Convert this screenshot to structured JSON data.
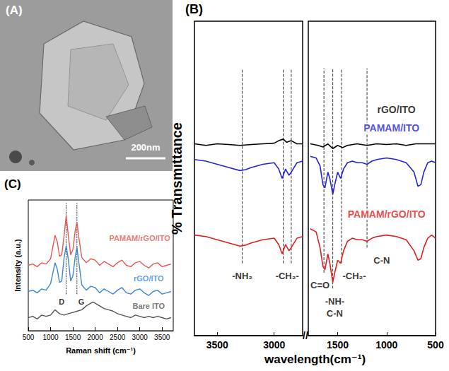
{
  "image_panel": {
    "title": "(A)",
    "scale_bar": "200nm"
  },
  "chart_data": [
    {
      "type": "line",
      "title": "(B)",
      "xlabel": "wavelength(cm⁻¹)",
      "ylabel": "% Transmittance",
      "ylim": [
        0,
        100
      ],
      "tick_labels": "x",
      "grid": false,
      "axis_break": "//",
      "segments": [
        {
          "xlim": [
            3700,
            2750
          ],
          "xticks": [
            3500,
            3000
          ]
        },
        {
          "xlim": [
            1800,
            500
          ],
          "xticks": [
            1500,
            1000,
            500
          ]
        }
      ],
      "series": [
        {
          "name": "rGO/ITO",
          "color": "#000000",
          "label_x": 900,
          "label_y": 72,
          "x": [
            3700,
            3600,
            3500,
            3400,
            3300,
            3200,
            3100,
            3000,
            2960,
            2920,
            2890,
            2850,
            2800,
            2750,
            1780,
            1700,
            1650,
            1600,
            1550,
            1500,
            1450,
            1400,
            1300,
            1200,
            1100,
            1000,
            900,
            800,
            700,
            600,
            500
          ],
          "values": [
            61,
            60.5,
            61,
            60.8,
            60.5,
            60.8,
            61,
            61.2,
            62,
            62.5,
            61.5,
            62,
            61,
            61,
            61,
            60.5,
            60,
            61,
            59.5,
            60.5,
            59.8,
            60.5,
            61,
            60.5,
            61,
            60.8,
            61,
            60.5,
            61,
            61,
            61
          ]
        },
        {
          "name": "PAMAM/ITO",
          "color": "#2323d8",
          "label_x": 950,
          "label_y": 66,
          "x": [
            3700,
            3600,
            3500,
            3400,
            3300,
            3250,
            3200,
            3100,
            3000,
            2960,
            2930,
            2900,
            2870,
            2850,
            2800,
            2750,
            1780,
            1720,
            1680,
            1650,
            1630,
            1600,
            1580,
            1550,
            1530,
            1500,
            1470,
            1440,
            1400,
            1350,
            1300,
            1250,
            1200,
            1150,
            1100,
            1000,
            900,
            800,
            720,
            680,
            650,
            620,
            580,
            540,
            500
          ],
          "values": [
            56,
            55.5,
            54.5,
            53.5,
            52.5,
            52.8,
            53.5,
            54.5,
            55,
            53,
            50,
            53,
            51,
            52,
            55,
            55.5,
            57,
            56.5,
            54,
            48,
            47,
            52,
            50,
            45,
            48,
            52,
            50,
            53,
            55,
            55.5,
            55,
            55,
            54.5,
            55.5,
            56,
            56.5,
            56,
            55,
            52,
            47.5,
            48,
            52,
            55,
            55.5,
            55
          ]
        },
        {
          "name": "PAMAM/rGO/ITO",
          "color": "#e02020",
          "label_x": 1000,
          "label_y": 38.6,
          "x": [
            3700,
            3600,
            3500,
            3400,
            3300,
            3250,
            3200,
            3100,
            3000,
            2960,
            2930,
            2900,
            2870,
            2850,
            2800,
            2750,
            1780,
            1720,
            1680,
            1650,
            1630,
            1600,
            1580,
            1550,
            1530,
            1500,
            1470,
            1440,
            1400,
            1350,
            1300,
            1250,
            1200,
            1150,
            1100,
            1000,
            900,
            800,
            720,
            680,
            650,
            620,
            580,
            540,
            500
          ],
          "values": [
            32,
            31.5,
            30.5,
            29.5,
            28.5,
            28.8,
            29.5,
            30.5,
            31,
            29,
            26,
            29,
            27,
            28,
            31,
            31.5,
            34,
            33,
            28,
            22,
            21,
            26,
            23,
            17,
            20,
            24,
            23,
            27,
            30,
            31,
            30.5,
            30.5,
            30,
            31,
            31.5,
            32,
            31.5,
            30.5,
            27,
            24,
            24.5,
            28,
            31,
            32,
            31
          ]
        }
      ],
      "annotations": [
        {
          "text": "-NH₂",
          "x": 3280,
          "y": 19
        },
        {
          "text": "-CH₂-",
          "x": 2885,
          "y": 19
        },
        {
          "text": "C=O",
          "x": 1680,
          "y": 16
        },
        {
          "text": "-NH-",
          "x": 1530,
          "y": 11
        },
        {
          "text": "C-N",
          "x": 1530,
          "y": 7
        },
        {
          "text": "-CH₂-",
          "x": 1330,
          "y": 19
        },
        {
          "text": "C-N",
          "x": 1050,
          "y": 24
        }
      ],
      "vlines": [
        {
          "x": 3280,
          "from": 23,
          "to": 85,
          "line_style": "dashed"
        },
        {
          "x": 2920,
          "from": 23,
          "to": 85,
          "line_style": "dashed"
        },
        {
          "x": 2850,
          "from": 23,
          "to": 85,
          "line_style": "dashed"
        },
        {
          "x": 1640,
          "from": 20,
          "to": 85,
          "line_style": "dashed"
        },
        {
          "x": 1550,
          "from": 15,
          "to": 85,
          "line_style": "dashed"
        },
        {
          "x": 1460,
          "from": 23,
          "to": 85,
          "line_style": "dashed"
        },
        {
          "x": 1200,
          "from": 28,
          "to": 85,
          "line_style": "dashed"
        }
      ]
    },
    {
      "type": "line",
      "title": "(C)",
      "xlabel": "Raman shift (cm⁻¹)",
      "ylabel": "Intensity (a.u.)",
      "xlim": [
        500,
        3750
      ],
      "xticks": [
        500,
        1000,
        1500,
        2000,
        2500,
        3000,
        3500
      ],
      "ylim": [
        0,
        100
      ],
      "tick_labels": "x",
      "grid": false,
      "series": [
        {
          "name": "PAMAM/rGO/ITO",
          "color": "#e8584f",
          "label_x": 3000,
          "label_y": 71,
          "x": [
            500,
            600,
            700,
            800,
            900,
            1000,
            1100,
            1150,
            1200,
            1250,
            1300,
            1350,
            1400,
            1450,
            1500,
            1550,
            1590,
            1630,
            1700,
            1800,
            1900,
            2000,
            2100,
            2200,
            2300,
            2400,
            2500,
            2600,
            2700,
            2800,
            2900,
            3000,
            3100,
            3200,
            3300,
            3400,
            3500,
            3600,
            3700
          ],
          "values": [
            50,
            51,
            49,
            52,
            51,
            55,
            73,
            68,
            57,
            58,
            72,
            88,
            72,
            58,
            62,
            76,
            83,
            72,
            56,
            52,
            55,
            54,
            50,
            53,
            51,
            49,
            52,
            54,
            50,
            49,
            52,
            53,
            50,
            48,
            51,
            52,
            49,
            50,
            51
          ]
        },
        {
          "name": "rGO/ITO",
          "color": "#3b86d6",
          "label_x": 3200,
          "label_y": 40,
          "x": [
            500,
            600,
            700,
            800,
            900,
            1000,
            1100,
            1150,
            1200,
            1250,
            1300,
            1350,
            1400,
            1450,
            1500,
            1550,
            1590,
            1630,
            1700,
            1800,
            1900,
            2000,
            2100,
            2200,
            2300,
            2400,
            2500,
            2600,
            2700,
            2800,
            2900,
            3000,
            3100,
            3200,
            3300,
            3400,
            3500,
            3600,
            3700
          ],
          "values": [
            30,
            31,
            29,
            32,
            31,
            36,
            52,
            47,
            37,
            38,
            55,
            65,
            54,
            38,
            42,
            56,
            64,
            53,
            35,
            31,
            34,
            33,
            29,
            32,
            30,
            28,
            31,
            33,
            29,
            28,
            31,
            32,
            29,
            27,
            30,
            31,
            28,
            29,
            30
          ]
        },
        {
          "name": "Bare ITO",
          "color": "#555555",
          "label_x": 3200,
          "label_y": 19,
          "x": [
            500,
            600,
            700,
            800,
            900,
            1000,
            1100,
            1200,
            1300,
            1400,
            1500,
            1600,
            1700,
            1800,
            1900,
            1950,
            2000,
            2100,
            2200,
            2300,
            2400,
            2500,
            2600,
            2700,
            2800,
            2900,
            3000,
            3100,
            3200,
            3300,
            3400,
            3500,
            3600,
            3700
          ],
          "values": [
            10,
            11,
            9,
            12,
            11,
            12,
            16,
            13,
            12,
            13,
            14,
            15,
            16,
            19,
            21,
            22,
            21,
            19,
            17,
            16,
            15,
            13,
            12,
            11,
            10,
            12,
            11,
            10,
            11,
            10,
            11,
            10,
            9,
            10
          ]
        }
      ],
      "annotations": [
        {
          "text": "D",
          "x": 1250,
          "y": 22
        },
        {
          "text": "G",
          "x": 1690,
          "y": 22
        }
      ],
      "vlines": [
        {
          "x": 1350,
          "from": 28,
          "to": 98,
          "line_style": "dotted"
        },
        {
          "x": 1590,
          "from": 28,
          "to": 98,
          "line_style": "dotted"
        }
      ]
    }
  ]
}
